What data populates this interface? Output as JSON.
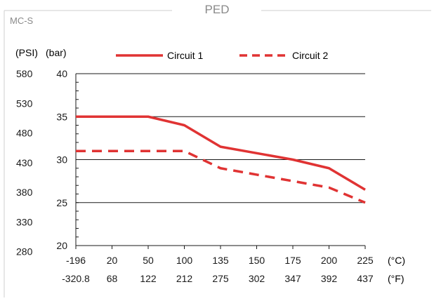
{
  "panel": {
    "title": "PED",
    "subtitle": "MC-S"
  },
  "chart_data": {
    "type": "line",
    "x": [
      -196,
      20,
      50,
      100,
      135,
      150,
      175,
      200,
      225
    ],
    "x_tick_labels_c": [
      "-196",
      "20",
      "50",
      "100",
      "135",
      "150",
      "175",
      "200",
      "225"
    ],
    "x_tick_labels_f": [
      "-320.8",
      "68",
      "122",
      "212",
      "275",
      "302",
      "347",
      "392",
      "437"
    ],
    "x_unit_c": "(°C)",
    "x_unit_f": "(°F)",
    "y_unit_psi": "(PSI)",
    "y_unit_bar": "(bar)",
    "ylim": [
      20,
      40
    ],
    "y_ticks_bar": [
      "20",
      "25",
      "30",
      "35",
      "40"
    ],
    "y_ticks_psi": [
      "280",
      "330",
      "380",
      "430",
      "480",
      "530",
      "580"
    ],
    "psi_tick_values_bar": [
      19.3,
      22.75,
      26.2,
      29.65,
      33.1,
      36.55,
      40.0
    ],
    "grid": "horizontal",
    "legend_position": "top",
    "series": [
      {
        "name": "Circuit 1",
        "style": "solid",
        "color": "#e03333",
        "values": [
          35,
          35,
          35,
          34,
          31.5,
          30.75,
          30,
          29,
          26.5
        ]
      },
      {
        "name": "Circuit 2",
        "style": "dashed",
        "color": "#e03333",
        "values": [
          31,
          31,
          31,
          31,
          29,
          28.25,
          27.5,
          26.75,
          25
        ]
      }
    ]
  }
}
